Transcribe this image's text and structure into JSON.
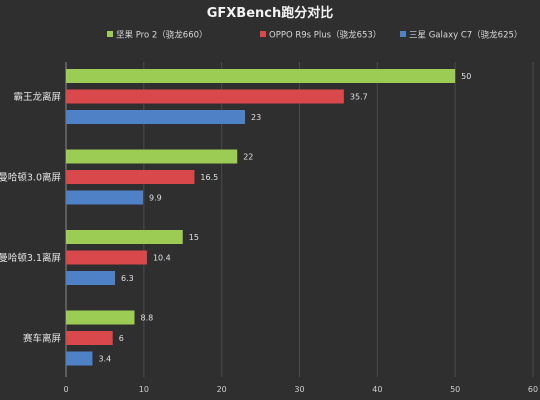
{
  "chart_data": {
    "type": "bar",
    "orientation": "horizontal",
    "title": "GFXBench跑分对比",
    "categories": [
      "霸王龙离屏",
      "曼哈顿3.0离屏",
      "曼哈顿3.1离屏",
      "赛车离屏"
    ],
    "series": [
      {
        "name": "坚果 Pro 2（骁龙660）",
        "color": "#9ccc54",
        "values": [
          50,
          22,
          15,
          8.8
        ]
      },
      {
        "name": "OPPO R9s Plus（骁龙653）",
        "color": "#d9484b",
        "values": [
          35.7,
          16.5,
          10.4,
          6
        ]
      },
      {
        "name": "三星 Galaxy C7（骁龙625）",
        "color": "#4f81c7",
        "values": [
          23,
          9.9,
          6.3,
          3.4
        ]
      }
    ],
    "value_labels": [
      [
        "50",
        "22",
        "15",
        "8.8"
      ],
      [
        "35.7",
        "16.5",
        "10.4",
        "6"
      ],
      [
        "23",
        "9.9",
        "6.3",
        "3.4"
      ]
    ],
    "xlim": [
      0,
      60
    ],
    "xticks": [
      0,
      10,
      20,
      30,
      40,
      50,
      60
    ],
    "grid": true,
    "legend_position": "top"
  }
}
